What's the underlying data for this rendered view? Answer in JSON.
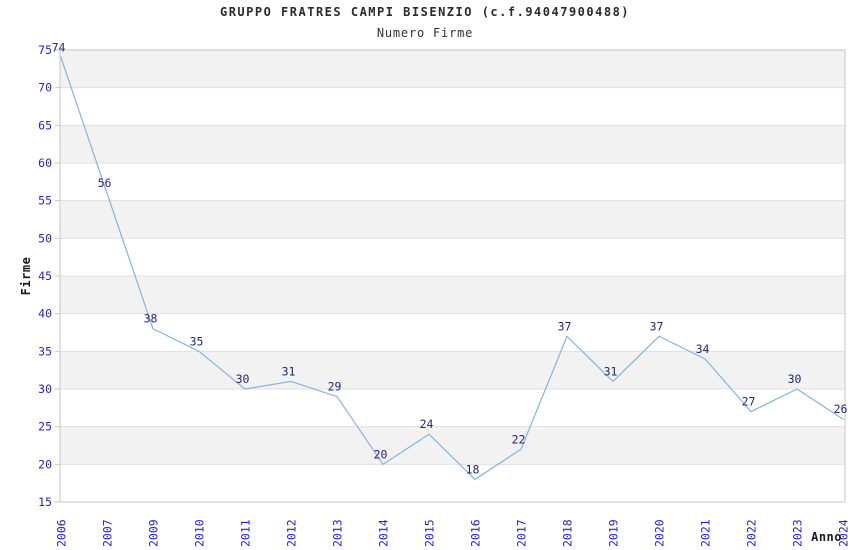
{
  "chart_data": {
    "type": "line",
    "title": "GRUPPO FRATRES CAMPI BISENZIO (c.f.94047900488)",
    "subtitle": "Numero Firme",
    "xlabel": "Anno",
    "ylabel": "Firme",
    "categories": [
      "2006",
      "2007",
      "2009",
      "2010",
      "2011",
      "2012",
      "2013",
      "2014",
      "2015",
      "2016",
      "2017",
      "2018",
      "2019",
      "2020",
      "2021",
      "2022",
      "2023",
      "2024"
    ],
    "values": [
      74,
      56,
      38,
      35,
      30,
      31,
      29,
      20,
      24,
      18,
      22,
      37,
      31,
      37,
      34,
      27,
      30,
      26
    ],
    "yticks": [
      75,
      70,
      65,
      60,
      55,
      50,
      45,
      40,
      35,
      30,
      25,
      20,
      15
    ],
    "ylim": [
      15,
      75
    ],
    "ytick_step": 5,
    "grid": "horizontal-bands",
    "legend": "none",
    "data_labels_shown": true,
    "colors": {
      "line": "#85b3e2",
      "data_label": "#26267d",
      "tick_label": "#2424cc",
      "title_text": "#2b2b2b",
      "band_gray": "#f2f2f2",
      "grid_line": "#e0e0e0",
      "plot_border": "#c6c6c6",
      "background": "#ffffff"
    }
  }
}
